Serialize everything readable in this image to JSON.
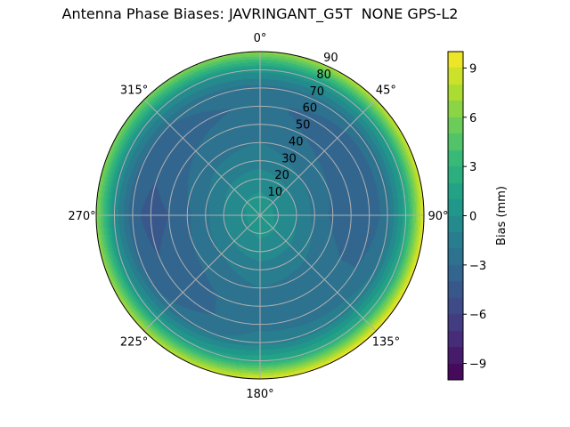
{
  "chart_data": {
    "type": "heatmap",
    "subtype": "polar-filled-contour",
    "title": "Antenna Phase Biases: JAVRINGANT_G5T  NONE GPS-L2",
    "theta_direction": "clockwise",
    "theta_zero": "north",
    "theta_ticks": [
      "0°",
      "45°",
      "90°",
      "135°",
      "180°",
      "225°",
      "270°",
      "315°"
    ],
    "theta_tick_values": [
      0,
      45,
      90,
      135,
      180,
      225,
      270,
      315
    ],
    "r_ticks": [
      "10",
      "20",
      "30",
      "40",
      "50",
      "60",
      "70",
      "80",
      "90"
    ],
    "r_tick_values": [
      10,
      20,
      30,
      40,
      50,
      60,
      70,
      80,
      90
    ],
    "rlim": [
      0,
      90
    ],
    "grid": true,
    "colormap": "viridis",
    "colorbar": {
      "label": "Bias (mm)",
      "range": [
        -10,
        10
      ],
      "level_step": 1,
      "ticks": [
        "−9",
        "−6",
        "−3",
        "0",
        "3",
        "6",
        "9"
      ],
      "tick_values": [
        -9,
        -6,
        -3,
        0,
        3,
        6,
        9
      ],
      "placement": "right"
    },
    "zenith": [
      0,
      10,
      20,
      30,
      40,
      50,
      60,
      70,
      80,
      90
    ],
    "azimuth": [
      0,
      45,
      90,
      135,
      180,
      225,
      270,
      315
    ],
    "values": [
      [
        0.5,
        0.5,
        0.5,
        0.5,
        0.5,
        0.5,
        0.5,
        0.5
      ],
      [
        0.2,
        -0.1,
        -0.2,
        0.1,
        0.2,
        -0.1,
        -0.2,
        0.1
      ],
      [
        -0.5,
        -0.9,
        -1.1,
        -0.7,
        -0.5,
        -0.9,
        -1.1,
        -0.7
      ],
      [
        -1.4,
        -2.0,
        -2.3,
        -1.6,
        -1.4,
        -2.0,
        -2.3,
        -1.6
      ],
      [
        -2.0,
        -2.8,
        -3.2,
        -2.4,
        -2.0,
        -2.8,
        -3.2,
        -2.4
      ],
      [
        -2.5,
        -3.3,
        -3.7,
        -2.6,
        -2.3,
        -3.4,
        -4.0,
        -3.0
      ],
      [
        -2.8,
        -3.5,
        -3.7,
        -2.6,
        -2.3,
        -3.6,
        -4.4,
        -3.4
      ],
      [
        -2.4,
        -2.6,
        -2.5,
        -1.6,
        -1.4,
        -2.8,
        -3.7,
        -3.0
      ],
      [
        0.5,
        1.0,
        1.7,
        2.4,
        2.1,
        0.8,
        -0.3,
        -0.1
      ],
      [
        6.7,
        8.2,
        9.5,
        10.0,
        9.3,
        7.8,
        6.5,
        6.0
      ]
    ]
  }
}
